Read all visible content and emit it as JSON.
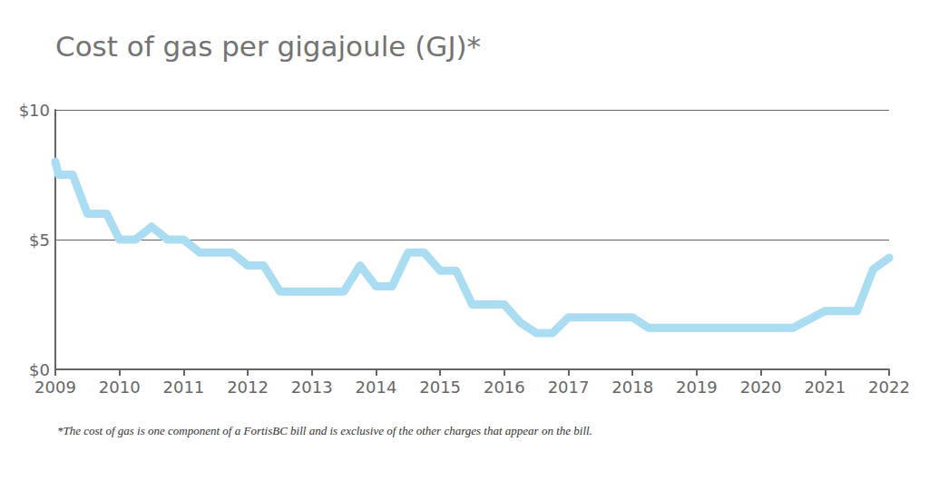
{
  "chart_data": {
    "type": "line",
    "title": "Cost of gas per gigajoule (GJ)*",
    "footnote": "*The cost of gas is one component of a FortisBC bill and is exclusive of the other charges that appear on the bill.",
    "x": [
      2009.0,
      2009.05,
      2009.27,
      2009.5,
      2009.8,
      2010.0,
      2010.25,
      2010.5,
      2010.75,
      2011.0,
      2011.25,
      2011.75,
      2012.0,
      2012.25,
      2012.5,
      2013.5,
      2013.75,
      2014.0,
      2014.25,
      2014.5,
      2014.75,
      2015.0,
      2015.25,
      2015.5,
      2016.0,
      2016.25,
      2016.5,
      2016.75,
      2017.0,
      2018.0,
      2018.25,
      2020.5,
      2021.0,
      2021.5,
      2021.75,
      2022.0
    ],
    "values": [
      8.0,
      7.5,
      7.5,
      6.0,
      6.0,
      5.0,
      5.0,
      5.5,
      5.0,
      5.0,
      4.5,
      4.5,
      4.0,
      4.0,
      3.0,
      3.0,
      4.0,
      3.2,
      3.2,
      4.5,
      4.5,
      3.8,
      3.8,
      2.5,
      2.5,
      1.8,
      1.4,
      1.4,
      2.0,
      2.0,
      1.6,
      1.6,
      2.25,
      2.25,
      3.85,
      4.3
    ],
    "color": "#aadcf2",
    "xlim": [
      2009,
      2022
    ],
    "xticks": [
      2009,
      2010,
      2011,
      2012,
      2013,
      2014,
      2015,
      2016,
      2017,
      2018,
      2019,
      2020,
      2021,
      2022
    ],
    "ylim": [
      0,
      10
    ],
    "yticks": [
      {
        "value": 0,
        "label": "$0"
      },
      {
        "value": 5,
        "label": "$5"
      },
      {
        "value": 10,
        "label": "$10"
      }
    ],
    "grid": true
  }
}
